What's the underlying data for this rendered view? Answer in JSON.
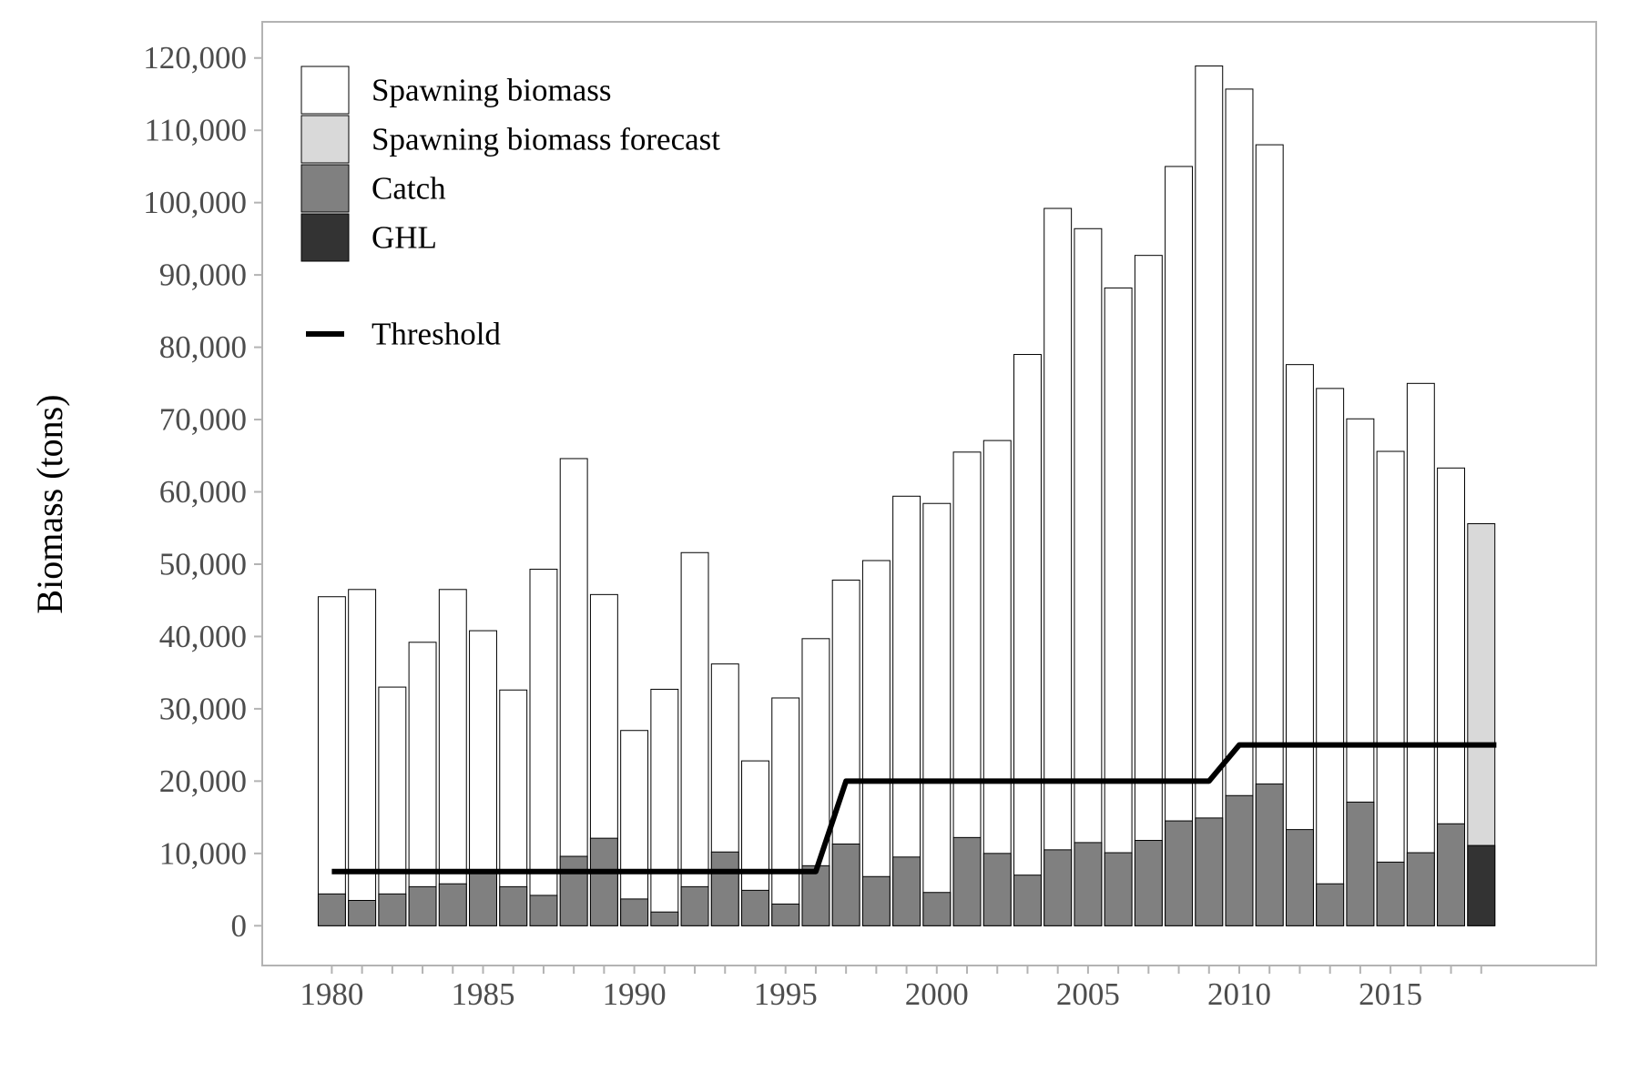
{
  "chart_data": {
    "type": "bar",
    "title": "",
    "xlabel": "",
    "ylabel": "Biomass (tons)",
    "ylim": [
      -5500,
      125000
    ],
    "xlim": [
      1977.7,
      2021.8
    ],
    "x_ticks": [
      1980,
      1985,
      1990,
      1995,
      2000,
      2005,
      2010,
      2015
    ],
    "y_ticks": [
      {
        "value": 0,
        "label": "0"
      },
      {
        "value": 10000,
        "label": "10,000"
      },
      {
        "value": 20000,
        "label": "20,000"
      },
      {
        "value": 30000,
        "label": "30,000"
      },
      {
        "value": 40000,
        "label": "40,000"
      },
      {
        "value": 50000,
        "label": "50,000"
      },
      {
        "value": 60000,
        "label": "60,000"
      },
      {
        "value": 70000,
        "label": "70,000"
      },
      {
        "value": 80000,
        "label": "80,000"
      },
      {
        "value": 90000,
        "label": "90,000"
      },
      {
        "value": 100000,
        "label": "100,000"
      },
      {
        "value": 110000,
        "label": "110,000"
      },
      {
        "value": 120000,
        "label": "120,000"
      }
    ],
    "grid": false,
    "legend_position": "top-left",
    "years": [
      1980,
      1981,
      1982,
      1983,
      1984,
      1985,
      1986,
      1987,
      1988,
      1989,
      1990,
      1991,
      1992,
      1993,
      1994,
      1995,
      1996,
      1997,
      1998,
      1999,
      2000,
      2001,
      2002,
      2003,
      2004,
      2005,
      2006,
      2007,
      2008,
      2009,
      2010,
      2011,
      2012,
      2013,
      2014,
      2015,
      2016,
      2017,
      2018
    ],
    "series": [
      {
        "name": "Spawning biomass",
        "color": "#ffffff",
        "values": [
          45500,
          46500,
          33000,
          39200,
          46500,
          40800,
          32600,
          49300,
          64600,
          45800,
          27000,
          32700,
          51600,
          36200,
          22800,
          31500,
          39700,
          47800,
          50500,
          59400,
          58400,
          65500,
          67100,
          79000,
          99200,
          96400,
          88200,
          92700,
          105000,
          118900,
          115700,
          108000,
          77600,
          74300,
          70100,
          65600,
          75000,
          63300,
          null
        ]
      },
      {
        "name": "Spawning biomass forecast",
        "color": "#d9d9d9",
        "values": [
          null,
          null,
          null,
          null,
          null,
          null,
          null,
          null,
          null,
          null,
          null,
          null,
          null,
          null,
          null,
          null,
          null,
          null,
          null,
          null,
          null,
          null,
          null,
          null,
          null,
          null,
          null,
          null,
          null,
          null,
          null,
          null,
          null,
          null,
          null,
          null,
          null,
          null,
          55600
        ]
      },
      {
        "name": "Catch",
        "color": "#808080",
        "values": [
          4400,
          3500,
          4400,
          5400,
          5800,
          7300,
          5400,
          4200,
          9600,
          12100,
          3700,
          1900,
          5400,
          10200,
          4900,
          3000,
          8300,
          11300,
          6800,
          9500,
          4600,
          12200,
          10000,
          7000,
          10500,
          11500,
          10100,
          11800,
          14500,
          14900,
          18000,
          19600,
          13300,
          5800,
          17100,
          8800,
          10100,
          14100,
          null
        ]
      },
      {
        "name": "GHL",
        "color": "#333333",
        "values": [
          null,
          null,
          null,
          null,
          null,
          null,
          null,
          null,
          null,
          null,
          null,
          null,
          null,
          null,
          null,
          null,
          null,
          null,
          null,
          null,
          null,
          null,
          null,
          null,
          null,
          null,
          null,
          null,
          null,
          null,
          null,
          null,
          null,
          null,
          null,
          null,
          null,
          null,
          11100
        ]
      }
    ],
    "threshold": {
      "name": "Threshold",
      "color": "#000000",
      "points": [
        {
          "x": 1980,
          "y": 7500
        },
        {
          "x": 1996,
          "y": 7500
        },
        {
          "x": 1997,
          "y": 20000
        },
        {
          "x": 2009,
          "y": 20000
        },
        {
          "x": 2010,
          "y": 25000
        },
        {
          "x": 2018.5,
          "y": 25000
        }
      ]
    }
  }
}
